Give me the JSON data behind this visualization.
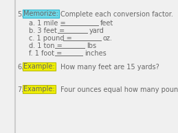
{
  "background_color": "#f0f0f0",
  "section5_number": "5.",
  "memorize_label": "Memorize:",
  "memorize_bg": "#6dd8e8",
  "memorize_border": "#30b8d0",
  "section5_text": "Complete each conversion factor.",
  "items": [
    {
      "label": "a. 1 mile =",
      "unit": "feet"
    },
    {
      "label": "b. 3 feet =",
      "unit": "yard"
    },
    {
      "label": "c. 1 pound =",
      "unit": "oz."
    },
    {
      "label": "d. 1 ton =",
      "unit": "lbs"
    },
    {
      "label": "f. 1 foot =",
      "unit": "inches"
    }
  ],
  "section6_number": "6.",
  "example6_label": "Example:",
  "example6_bg": "#eeee00",
  "example6_border": "#bbbb00",
  "section6_text": "How many feet are 15 yards?",
  "section7_number": "7.",
  "example7_label": "Example:",
  "example7_bg": "#eeee00",
  "example7_border": "#bbbb00",
  "section7_text": "Four ounces equal how many pounds?",
  "text_color": "#666666",
  "font_size": 7.0,
  "line_lengths": [
    55,
    43,
    55,
    43,
    40
  ]
}
